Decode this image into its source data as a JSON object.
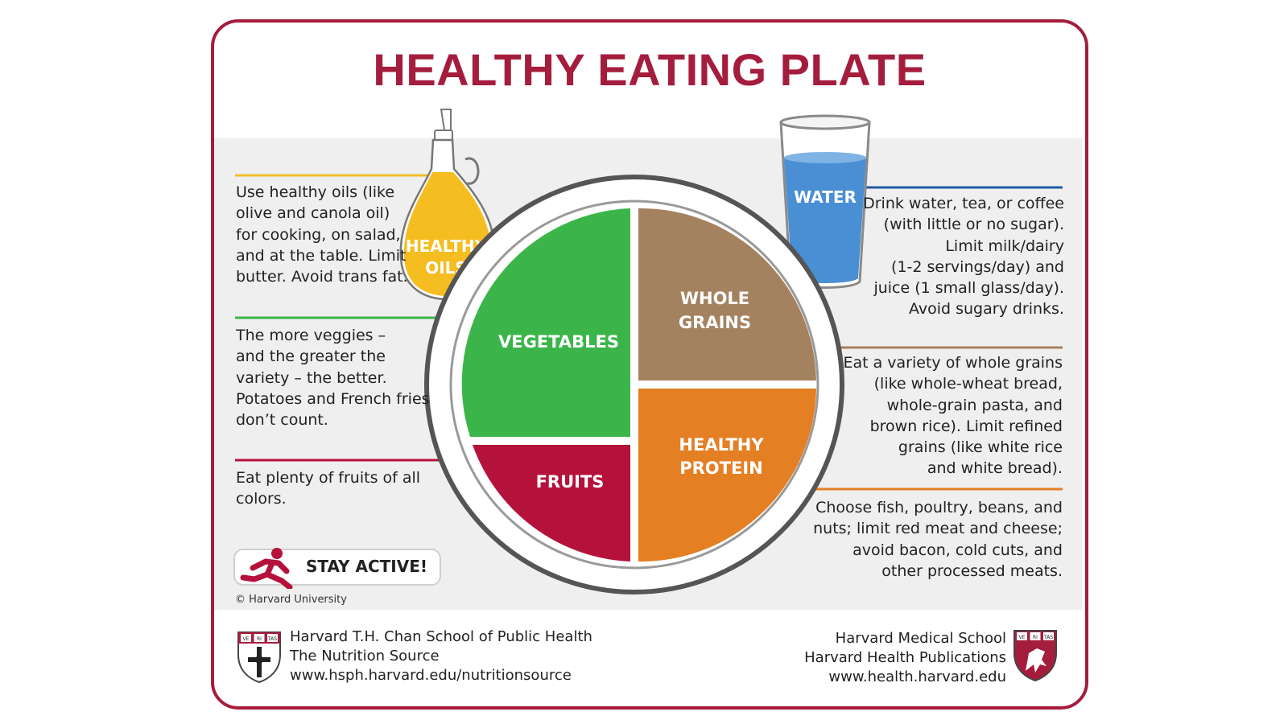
{
  "title": "HEALTHY EATING PLATE",
  "colors": {
    "brand": "#a51d3d",
    "oils": "#f2be2a",
    "water": "#4a8fd4",
    "vegetables": "#3bb54a",
    "grains": "#a5825f",
    "protein": "#e47f23",
    "fruits": "#b5123b"
  },
  "items": {
    "oils": {
      "label_lines": [
        "HEALTHY",
        "OILS"
      ],
      "text": "Use healthy oils (like\nolive and canola oil)\nfor cooking, on salad,\nand at the table. Limit\nbutter. Avoid trans fat.",
      "icon": "oil-bottle-icon"
    },
    "water": {
      "label": "WATER",
      "text": "Drink water, tea, or coffee\n(with little or no sugar).\nLimit milk/dairy\n(1-2 servings/day) and\njuice (1 small glass/day).\nAvoid sugary drinks.",
      "icon": "water-glass-icon"
    },
    "vegetables": {
      "label": "VEGETABLES",
      "text": "The more veggies –\nand the greater the\nvariety – the better.\nPotatoes and French fries\ndon’t count."
    },
    "grains": {
      "label_lines": [
        "WHOLE",
        "GRAINS"
      ],
      "text": "Eat a variety of whole grains\n(like whole-wheat bread,\nwhole-grain pasta, and\nbrown rice). Limit refined\ngrains (like white rice\nand white bread)."
    },
    "fruits": {
      "label": "FRUITS",
      "text": "Eat plenty of fruits of all\ncolors."
    },
    "protein": {
      "label_lines": [
        "HEALTHY",
        "PROTEIN"
      ],
      "text": "Choose fish, poultry, beans, and\nnuts;  limit red meat and cheese;\navoid bacon, cold cuts,  and\nother processed meats."
    }
  },
  "stay_active": {
    "label": "STAY ACTIVE!",
    "icon": "running-person-icon"
  },
  "copyright": "© Harvard University",
  "footer": {
    "left": {
      "lines": [
        "Harvard T.H. Chan School of Public Health",
        "The Nutrition Source",
        "www.hsph.harvard.edu/nutritionsource"
      ],
      "shield_text": [
        "VE",
        "RI",
        "TAS"
      ],
      "icon": "harvard-chan-shield-icon"
    },
    "right": {
      "lines": [
        "Harvard Medical School",
        "Harvard Health Publications",
        "www.health.harvard.edu"
      ],
      "shield_text": [
        "VE",
        "RI",
        "TAS"
      ],
      "icon": "harvard-medical-shield-icon"
    }
  }
}
